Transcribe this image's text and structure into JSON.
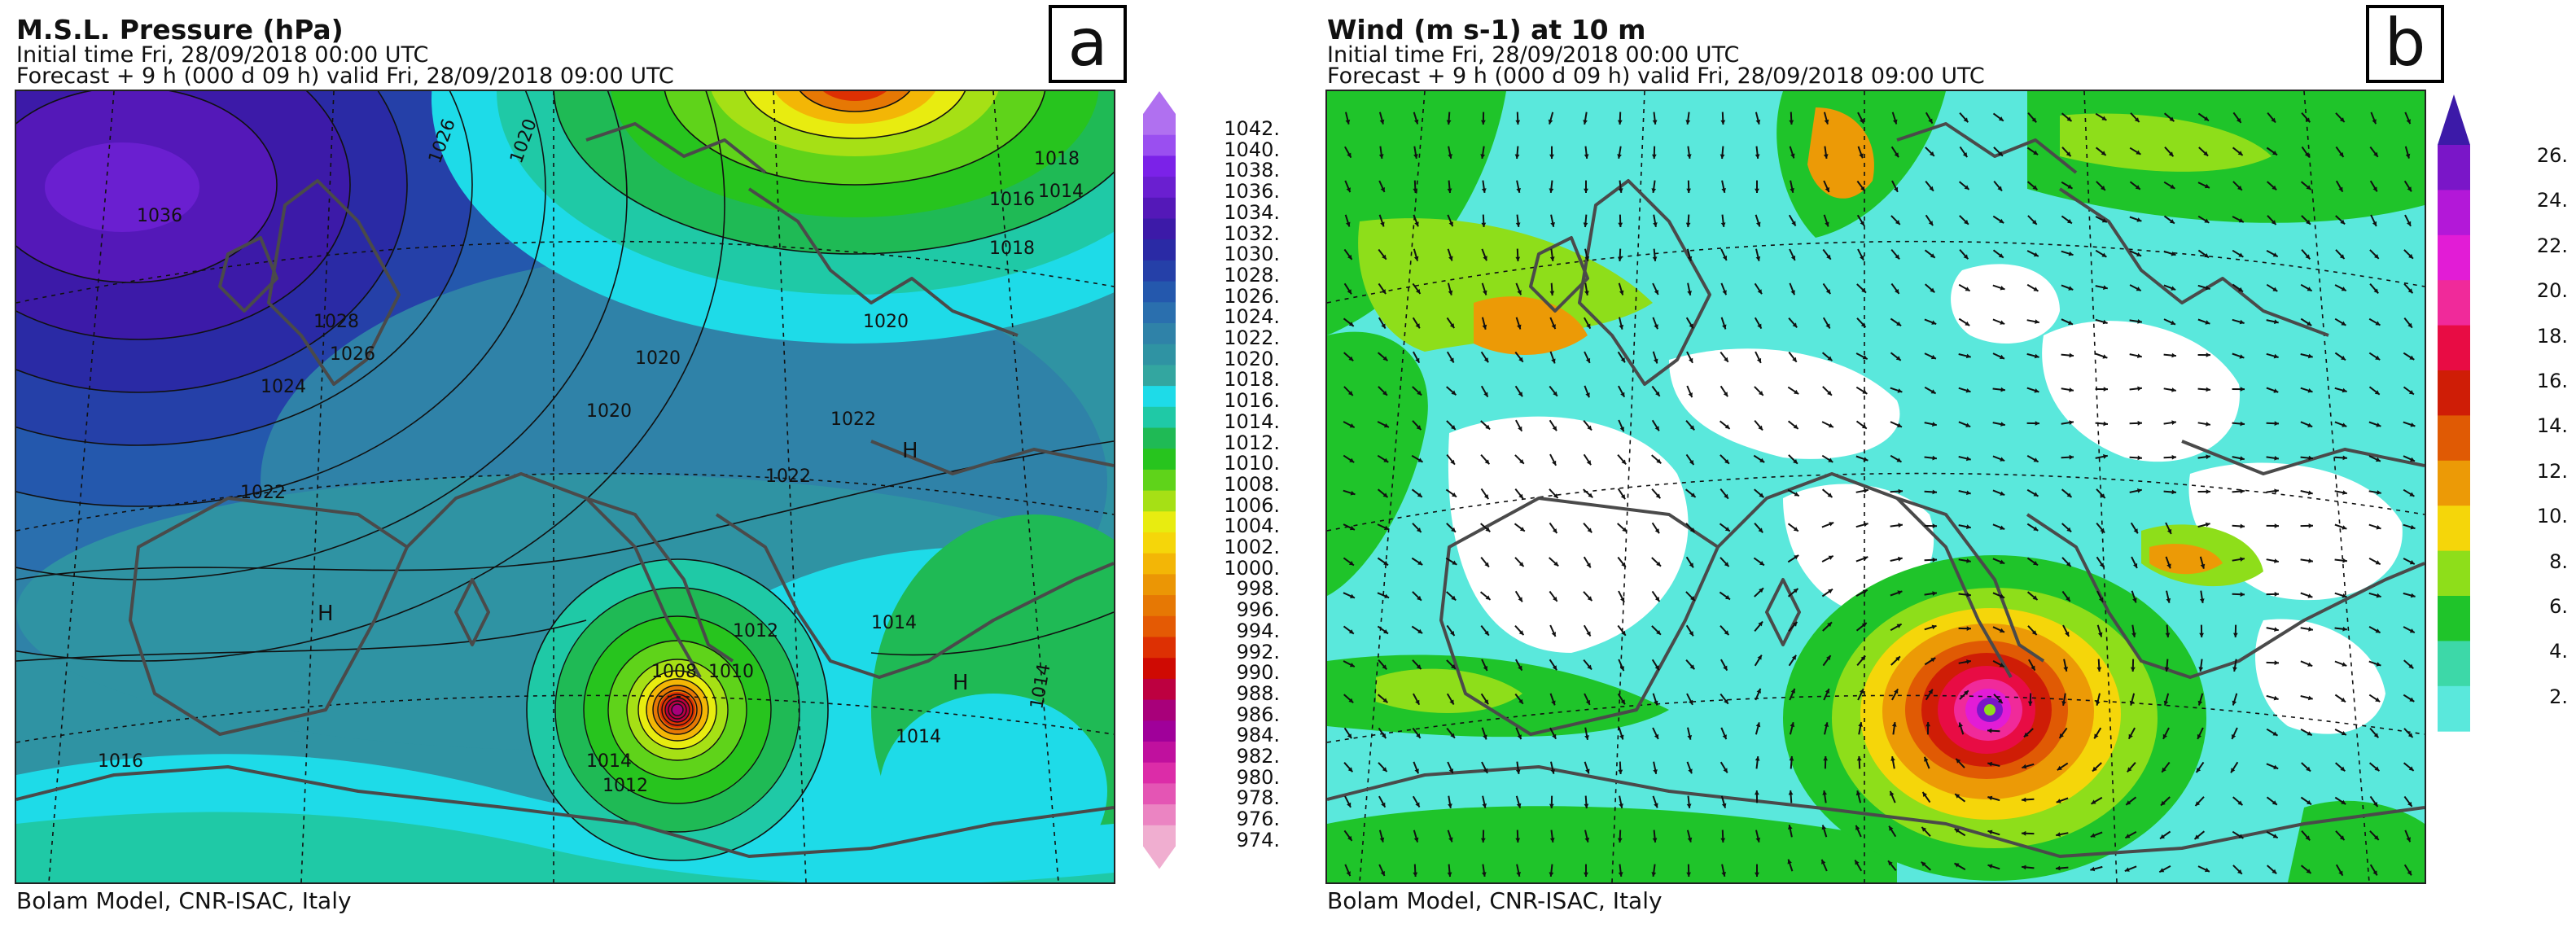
{
  "panel_a": {
    "title": "M.S.L. Pressure (hPa)",
    "initial_time": "Initial time  Fri, 28/09/2018  00:00 UTC",
    "forecast": "Forecast  +   9 h  (000 d 09 h)  valid Fri, 28/09/2018 09:00 UTC",
    "label": "a",
    "footer": "Bolam Model, CNR-ISAC, Italy",
    "colorbar_labels": [
      "1042.",
      "1040.",
      "1038.",
      "1036.",
      "1034.",
      "1032.",
      "1030.",
      "1028.",
      "1026.",
      "1024.",
      "1022.",
      "1020.",
      "1018.",
      "1016.",
      "1014.",
      "1012.",
      "1010.",
      "1008.",
      "1006.",
      "1004.",
      "1002.",
      "1000.",
      "998.",
      "996.",
      "994.",
      "992.",
      "990.",
      "988.",
      "986.",
      "984.",
      "982.",
      "980.",
      "978.",
      "976.",
      "974."
    ],
    "colorbar_colors": [
      "#b070f0",
      "#9a4ff0",
      "#7b22e8",
      "#6a1fd0",
      "#5418b8",
      "#3c1aa8",
      "#2a2aa5",
      "#2540a8",
      "#2458ad",
      "#2a6fae",
      "#2f82a8",
      "#2f93a3",
      "#33a6a0",
      "#1edbe8",
      "#1fc9a6",
      "#1fba55",
      "#27c41e",
      "#5fd31a",
      "#a6e015",
      "#e8ec10",
      "#f5d60a",
      "#f3b606",
      "#eb9605",
      "#e67804",
      "#e45a04",
      "#dd3003",
      "#cf0a03",
      "#bd0040",
      "#a8007a",
      "#a0009a",
      "#c0109e",
      "#dc2ca8",
      "#e455b4",
      "#eb84c2",
      "#f0aed0"
    ],
    "contour_labels": [
      "1036",
      "1026",
      "1020",
      "1018",
      "1014",
      "1016",
      "1018",
      "1020",
      "1020",
      "1022",
      "1024",
      "1026",
      "1028",
      "1022",
      "1020",
      "1022",
      "1014",
      "1014",
      "1012",
      "1016",
      "1014",
      "1010",
      "1008",
      "1012",
      "1014"
    ],
    "high_markers": [
      "H",
      "H",
      "H"
    ]
  },
  "panel_b": {
    "title": "Wind (m s-1) at 10 m",
    "initial_time": "Initial time  Fri, 28/09/2018  00:00 UTC",
    "forecast": "Forecast  +   9 h  (000 d 09 h)  valid Fri, 28/09/2018 09:00 UTC",
    "label": "b",
    "footer": "Bolam Model, CNR-ISAC, Italy",
    "colorbar_labels": [
      "26.",
      "24.",
      "22.",
      "20.",
      "18.",
      "16.",
      "14.",
      "12.",
      "10.",
      "8.",
      "6.",
      "4.",
      "2."
    ],
    "colorbar_colors": [
      "#7a16c8",
      "#b318d8",
      "#e21cd6",
      "#f02a9a",
      "#e80c44",
      "#cf1d06",
      "#e05a04",
      "#ec9a06",
      "#f5d60a",
      "#8ede1a",
      "#1fc42a",
      "#3dd8a8",
      "#5ae8dc"
    ],
    "colorbar_cap_color": "#3c1aa8"
  },
  "colors": {
    "coast": "#4a4a4a",
    "wind_background": "#ffffff"
  }
}
